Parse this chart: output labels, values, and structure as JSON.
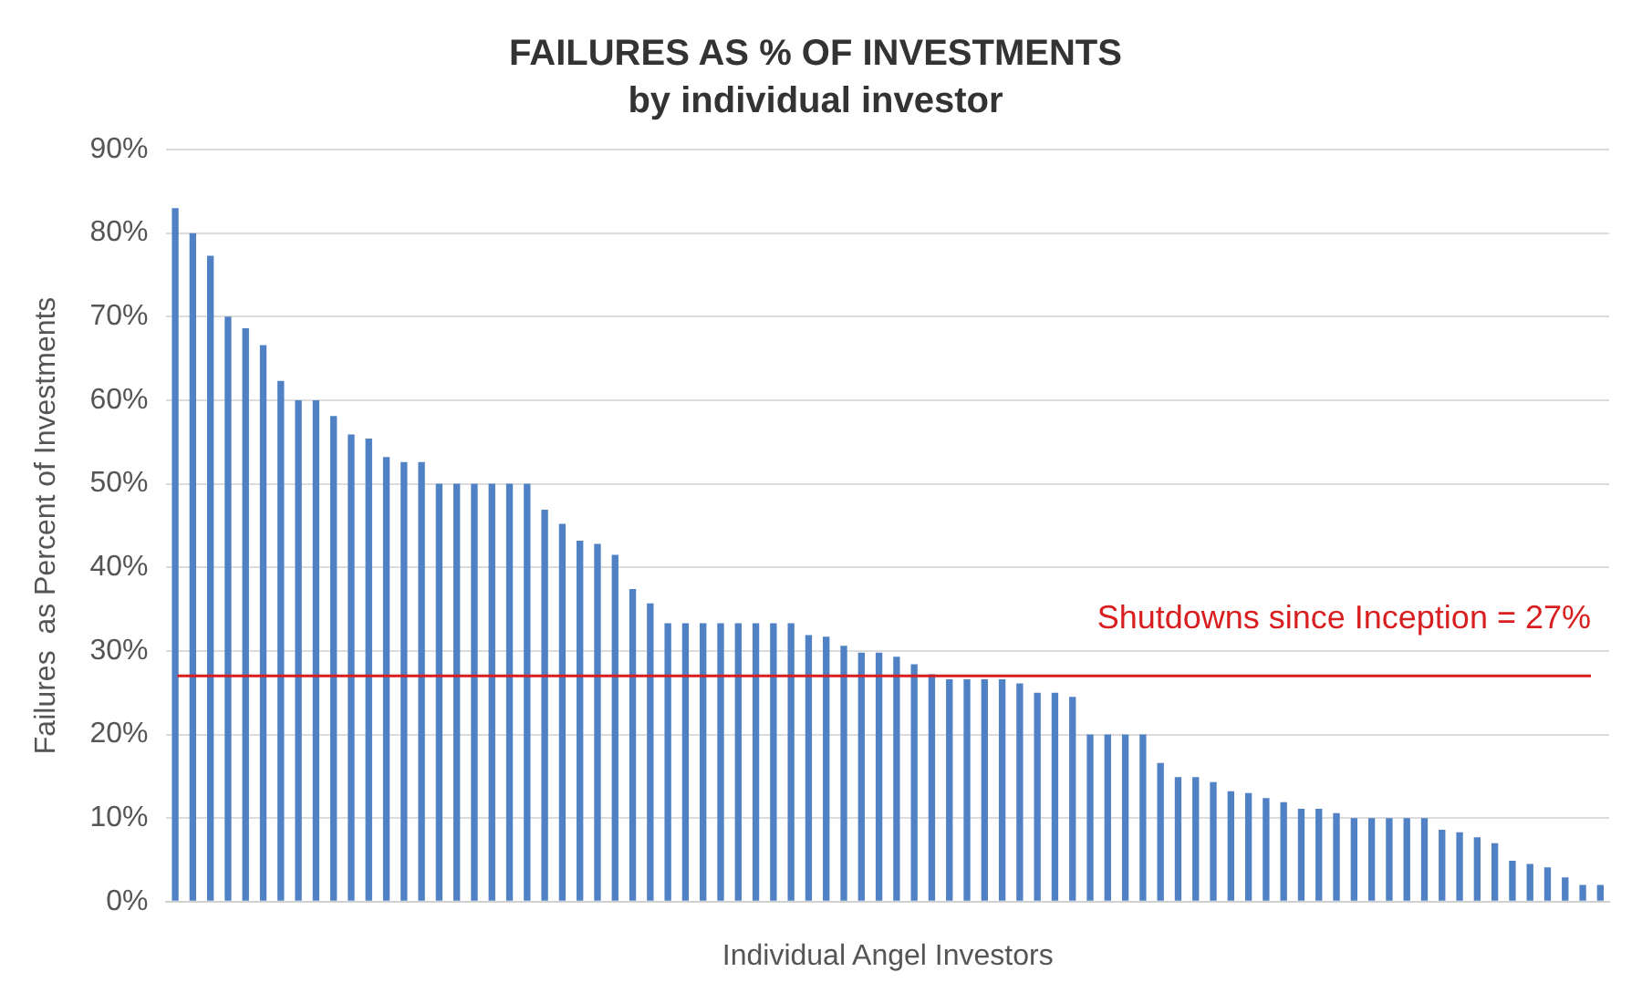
{
  "chart_data": {
    "type": "bar",
    "title": "FAILURES AS % OF INVESTMENTS",
    "subtitle": "by individual investor",
    "xlabel": "Individual Angel Investors",
    "ylabel": "Failures  as Percent of Investments",
    "categories": [
      null,
      null,
      null,
      null,
      null,
      null,
      null,
      null,
      null,
      null,
      null,
      null,
      null,
      null,
      null,
      null,
      null,
      null,
      null,
      null,
      null,
      null,
      null,
      null,
      null,
      null,
      null,
      null,
      null,
      null,
      null,
      null,
      null,
      null,
      null,
      null,
      null,
      null,
      null,
      null,
      null,
      null,
      null,
      null,
      null,
      null,
      null,
      null,
      null,
      null,
      null,
      null,
      null,
      null,
      null,
      null,
      null,
      null,
      null,
      null,
      null,
      null,
      null,
      null,
      null,
      null,
      null,
      null,
      null,
      null,
      null,
      null,
      null,
      null,
      null,
      null,
      null,
      null,
      null,
      null,
      null,
      null
    ],
    "values": [
      83,
      80,
      77.3,
      70,
      68.6,
      66.6,
      62.3,
      60,
      60,
      58.1,
      55.9,
      55.4,
      53.2,
      52.6,
      52.6,
      50,
      50,
      50,
      50,
      50,
      50,
      46.9,
      45.2,
      43.2,
      42.8,
      41.5,
      37.4,
      35.7,
      33.3,
      33.3,
      33.3,
      33.3,
      33.3,
      33.3,
      33.3,
      33.3,
      31.9,
      31.7,
      30.6,
      29.8,
      29.8,
      29.3,
      28.4,
      27.2,
      26.6,
      26.6,
      26.6,
      26.6,
      26.1,
      25,
      25,
      24.5,
      20,
      20,
      20,
      20,
      16.6,
      14.9,
      14.9,
      14.3,
      13.2,
      13,
      12.4,
      11.9,
      11.1,
      11.1,
      10.6,
      10,
      10,
      10,
      10,
      10,
      8.6,
      8.3,
      7.7,
      7,
      4.9,
      4.5,
      4.1,
      2.9,
      2,
      2
    ],
    "color": "#4f81c4",
    "ylim": [
      0,
      90
    ],
    "yticks": [
      {
        "value": 0,
        "label": "0%"
      },
      {
        "value": 10,
        "label": "10%"
      },
      {
        "value": 20,
        "label": "20%"
      },
      {
        "value": 30,
        "label": "30%"
      },
      {
        "value": 40,
        "label": "40%"
      },
      {
        "value": 50,
        "label": "50%"
      },
      {
        "value": 60,
        "label": "60%"
      },
      {
        "value": 70,
        "label": "70%"
      },
      {
        "value": 80,
        "label": "80%"
      },
      {
        "value": 90,
        "label": "90%"
      }
    ],
    "grid": "y",
    "legend": false,
    "ref_lines": [
      {
        "axis": "y",
        "value": 27,
        "label": "Shutdowns since Inception = 27%",
        "color": "#d81e1e"
      }
    ]
  }
}
